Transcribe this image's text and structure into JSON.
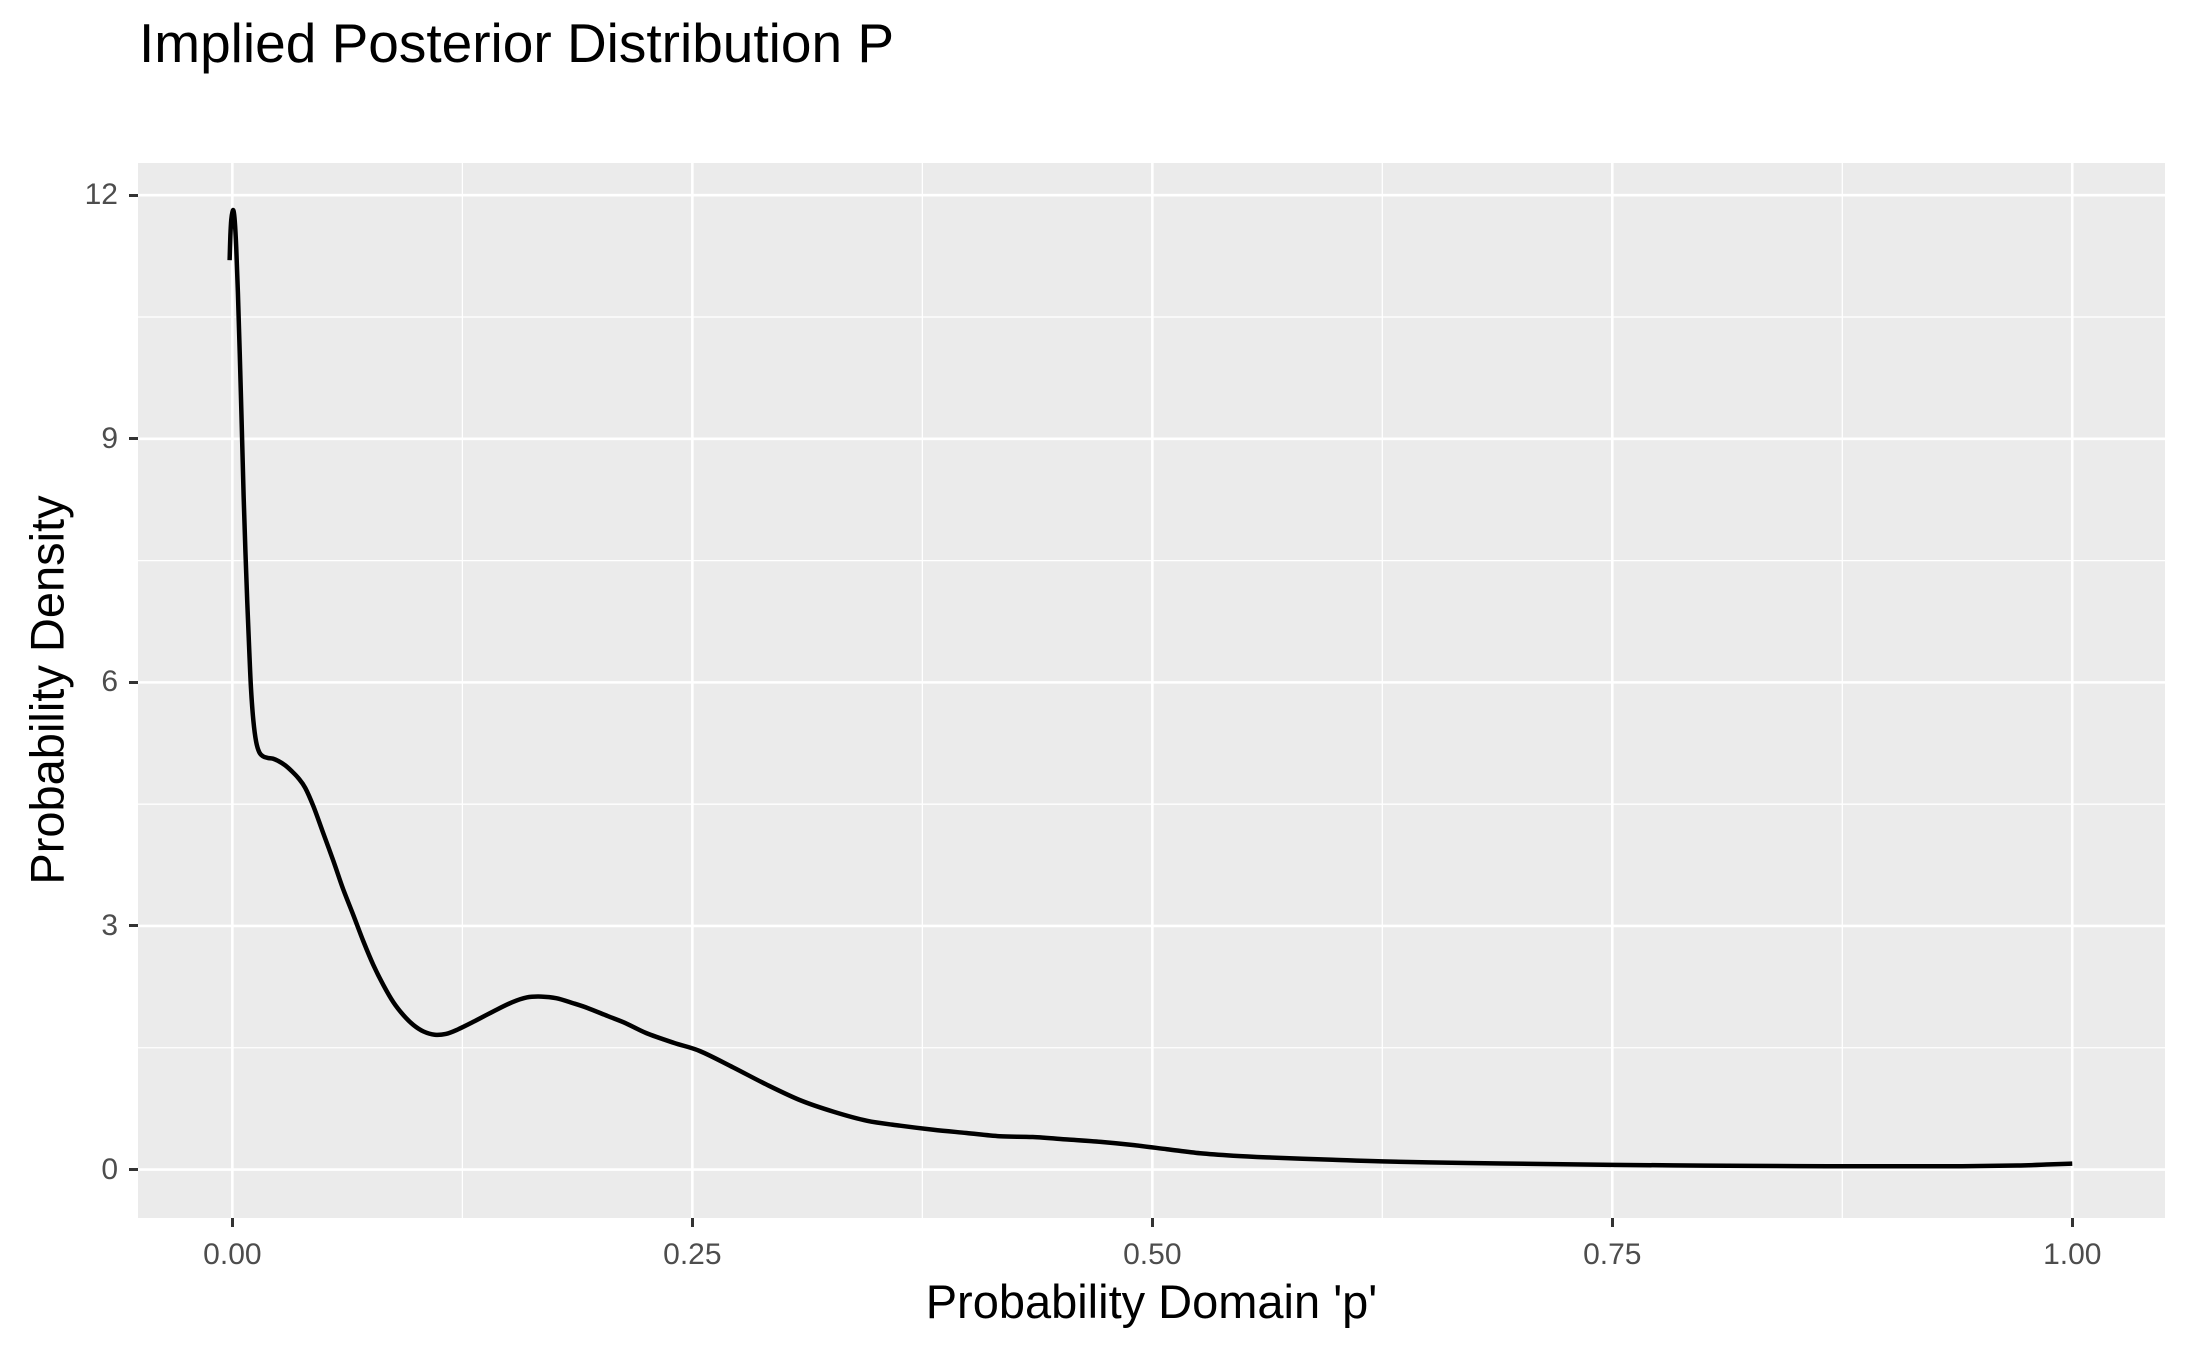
{
  "page": {
    "background": "#FFFFFF"
  },
  "chart_data": {
    "type": "line",
    "subtype": "kernel-density",
    "title": "Implied Posterior Distribution P",
    "xlabel": "Probability Domain 'p'",
    "ylabel": "Probability Density",
    "legend_position": "none",
    "grid": true,
    "panel_bg": "#EBEBEB",
    "grid_color": "#FFFFFF",
    "major_grid_width": 2.6,
    "minor_grid_width": 1.3,
    "tick_color": "#333333",
    "tick_label_color": "#4D4D4D",
    "title_color": "#000000",
    "line_color": "#000000",
    "line_width": 4.5,
    "x_domain": [
      -0.0513,
      1.0504
    ],
    "y_domain": [
      -0.597,
      12.397
    ],
    "x_ticks": [
      {
        "value": 0.0,
        "label": "0.00"
      },
      {
        "value": 0.25,
        "label": "0.25"
      },
      {
        "value": 0.5,
        "label": "0.50"
      },
      {
        "value": 0.75,
        "label": "0.75"
      },
      {
        "value": 1.0,
        "label": "1.00"
      }
    ],
    "y_ticks": [
      {
        "value": 0,
        "label": "0"
      },
      {
        "value": 3,
        "label": "3"
      },
      {
        "value": 6,
        "label": "6"
      },
      {
        "value": 9,
        "label": "9"
      },
      {
        "value": 12,
        "label": "12"
      }
    ],
    "x_minor": [
      0.125,
      0.375,
      0.625,
      0.875
    ],
    "y_minor": [
      1.5,
      4.5,
      7.5,
      10.5
    ],
    "series": [
      {
        "name": "posterior-density",
        "points": [
          [
            -0.0015,
            11.2
          ],
          [
            -0.0011,
            11.5
          ],
          [
            -0.0006,
            11.7
          ],
          [
            0.0,
            11.79
          ],
          [
            0.0006,
            11.81
          ],
          [
            0.0013,
            11.68
          ],
          [
            0.0021,
            11.35
          ],
          [
            0.003,
            10.8
          ],
          [
            0.004,
            10.05
          ],
          [
            0.0051,
            9.15
          ],
          [
            0.0061,
            8.3
          ],
          [
            0.0071,
            7.6
          ],
          [
            0.0081,
            6.98
          ],
          [
            0.0091,
            6.43
          ],
          [
            0.0101,
            5.93
          ],
          [
            0.0114,
            5.53
          ],
          [
            0.0129,
            5.27
          ],
          [
            0.0146,
            5.14
          ],
          [
            0.0166,
            5.09
          ],
          [
            0.0192,
            5.07
          ],
          [
            0.0221,
            5.06
          ],
          [
            0.0251,
            5.03
          ],
          [
            0.0286,
            4.98
          ],
          [
            0.0321,
            4.91
          ],
          [
            0.0359,
            4.82
          ],
          [
            0.0396,
            4.7
          ],
          [
            0.0441,
            4.47
          ],
          [
            0.0491,
            4.16
          ],
          [
            0.0549,
            3.8
          ],
          [
            0.0601,
            3.46
          ],
          [
            0.0658,
            3.13
          ],
          [
            0.0712,
            2.81
          ],
          [
            0.0766,
            2.52
          ],
          [
            0.0821,
            2.27
          ],
          [
            0.0875,
            2.06
          ],
          [
            0.093,
            1.9
          ],
          [
            0.0984,
            1.78
          ],
          [
            0.1039,
            1.7
          ],
          [
            0.11,
            1.66
          ],
          [
            0.116,
            1.67
          ],
          [
            0.122,
            1.72
          ],
          [
            0.131,
            1.82
          ],
          [
            0.142,
            1.95
          ],
          [
            0.152,
            2.06
          ],
          [
            0.16,
            2.12
          ],
          [
            0.168,
            2.13
          ],
          [
            0.176,
            2.11
          ],
          [
            0.185,
            2.05
          ],
          [
            0.193,
            1.99
          ],
          [
            0.204,
            1.89
          ],
          [
            0.214,
            1.8
          ],
          [
            0.225,
            1.68
          ],
          [
            0.24,
            1.56
          ],
          [
            0.254,
            1.46
          ],
          [
            0.272,
            1.26
          ],
          [
            0.29,
            1.05
          ],
          [
            0.309,
            0.85
          ],
          [
            0.327,
            0.71
          ],
          [
            0.345,
            0.6
          ],
          [
            0.363,
            0.54
          ],
          [
            0.381,
            0.49
          ],
          [
            0.399,
            0.45
          ],
          [
            0.417,
            0.41
          ],
          [
            0.435,
            0.4
          ],
          [
            0.454,
            0.37
          ],
          [
            0.472,
            0.34
          ],
          [
            0.49,
            0.3
          ],
          [
            0.508,
            0.25
          ],
          [
            0.526,
            0.2
          ],
          [
            0.544,
            0.17
          ],
          [
            0.562,
            0.15
          ],
          [
            0.598,
            0.12
          ],
          [
            0.625,
            0.1
          ],
          [
            0.671,
            0.08
          ],
          [
            0.707,
            0.07
          ],
          [
            0.75,
            0.058
          ],
          [
            0.8,
            0.048
          ],
          [
            0.85,
            0.042
          ],
          [
            0.9,
            0.04
          ],
          [
            0.94,
            0.041
          ],
          [
            0.97,
            0.049
          ],
          [
            0.988,
            0.063
          ],
          [
            1.0,
            0.072
          ]
        ]
      }
    ]
  }
}
